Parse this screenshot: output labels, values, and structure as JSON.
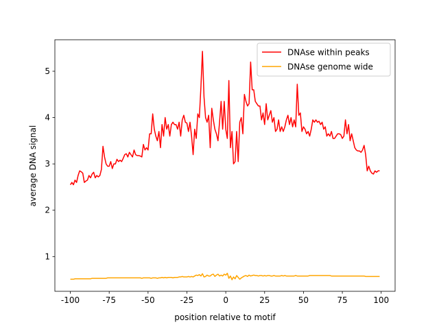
{
  "chart_data": {
    "type": "line",
    "xlabel": "position relative to motif",
    "ylabel": "average DNA signal",
    "x": [
      -100,
      -99,
      -98,
      -97,
      -96,
      -95,
      -94,
      -93,
      -92,
      -91,
      -90,
      -89,
      -88,
      -87,
      -86,
      -85,
      -84,
      -83,
      -82,
      -81,
      -80,
      -79,
      -78,
      -77,
      -76,
      -75,
      -74,
      -73,
      -72,
      -71,
      -70,
      -69,
      -68,
      -67,
      -66,
      -65,
      -64,
      -63,
      -62,
      -61,
      -60,
      -59,
      -58,
      -57,
      -56,
      -55,
      -54,
      -53,
      -52,
      -51,
      -50,
      -49,
      -48,
      -47,
      -46,
      -45,
      -44,
      -43,
      -42,
      -41,
      -40,
      -39,
      -38,
      -37,
      -36,
      -35,
      -34,
      -33,
      -32,
      -31,
      -30,
      -29,
      -28,
      -27,
      -26,
      -25,
      -24,
      -23,
      -22,
      -21,
      -20,
      -19,
      -18,
      -17,
      -16,
      -15,
      -14,
      -13,
      -12,
      -11,
      -10,
      -9,
      -8,
      -7,
      -6,
      -5,
      -4,
      -3,
      -2,
      -1,
      0,
      1,
      2,
      3,
      4,
      5,
      6,
      7,
      8,
      9,
      10,
      11,
      12,
      13,
      14,
      15,
      16,
      17,
      18,
      19,
      20,
      21,
      22,
      23,
      24,
      25,
      26,
      27,
      28,
      29,
      30,
      31,
      32,
      33,
      34,
      35,
      36,
      37,
      38,
      39,
      40,
      41,
      42,
      43,
      44,
      45,
      46,
      47,
      48,
      49,
      50,
      51,
      52,
      53,
      54,
      55,
      56,
      57,
      58,
      59,
      60,
      61,
      62,
      63,
      64,
      65,
      66,
      67,
      68,
      69,
      70,
      71,
      72,
      73,
      74,
      75,
      76,
      77,
      78,
      79,
      80,
      81,
      82,
      83,
      84,
      85,
      86,
      87,
      88,
      89,
      90,
      91,
      92,
      93,
      94,
      95,
      96,
      97,
      98,
      99
    ],
    "series": [
      {
        "name": "DNAse within peaks",
        "color": "#ff0000",
        "values": [
          2.55,
          2.6,
          2.55,
          2.65,
          2.6,
          2.75,
          2.85,
          2.83,
          2.8,
          2.6,
          2.63,
          2.65,
          2.75,
          2.7,
          2.78,
          2.82,
          2.7,
          2.75,
          2.72,
          2.75,
          2.88,
          3.38,
          3.15,
          3.0,
          2.95,
          2.95,
          3.05,
          2.9,
          3.0,
          3.0,
          3.1,
          3.05,
          3.08,
          3.05,
          3.12,
          3.2,
          3.22,
          3.15,
          3.25,
          3.2,
          3.15,
          3.3,
          3.2,
          3.18,
          3.18,
          3.17,
          3.15,
          3.42,
          3.3,
          3.35,
          3.3,
          3.65,
          3.65,
          4.08,
          3.75,
          3.6,
          3.5,
          3.7,
          3.35,
          3.85,
          3.6,
          4.0,
          3.75,
          3.85,
          3.6,
          3.85,
          3.9,
          3.85,
          3.85,
          3.75,
          3.9,
          3.6,
          3.95,
          4.05,
          3.9,
          3.88,
          3.7,
          3.9,
          3.6,
          3.2,
          3.75,
          3.55,
          4.08,
          4.0,
          4.65,
          5.43,
          4.45,
          4.0,
          3.9,
          4.05,
          3.35,
          4.2,
          3.95,
          3.75,
          3.65,
          3.5,
          3.9,
          4.35,
          3.75,
          4.35,
          3.75,
          3.55,
          4.8,
          3.35,
          3.7,
          3.0,
          3.05,
          3.7,
          3.05,
          3.9,
          4.0,
          3.65,
          4.5,
          4.35,
          4.25,
          4.3,
          5.2,
          4.6,
          4.6,
          4.35,
          4.3,
          4.25,
          4.25,
          3.95,
          4.1,
          3.85,
          4.3,
          3.95,
          4.05,
          4.15,
          3.9,
          4.0,
          3.7,
          3.75,
          3.95,
          3.7,
          3.8,
          3.7,
          3.8,
          3.95,
          4.05,
          3.85,
          4.0,
          3.8,
          3.95,
          3.8,
          4.72,
          4.05,
          4.1,
          3.7,
          3.8,
          3.75,
          3.65,
          3.7,
          3.6,
          3.75,
          3.95,
          3.9,
          3.95,
          3.9,
          3.92,
          3.85,
          3.9,
          3.75,
          3.8,
          3.6,
          3.65,
          3.6,
          3.7,
          3.55,
          3.55,
          3.6,
          3.65,
          3.65,
          3.63,
          3.55,
          3.6,
          3.95,
          3.65,
          3.85,
          3.5,
          3.65,
          3.5,
          3.35,
          3.3,
          3.28,
          3.28,
          3.25,
          3.3,
          3.4,
          3.2,
          2.85,
          2.95,
          2.85,
          2.8,
          2.78,
          2.85,
          2.82,
          2.85,
          2.85
        ]
      },
      {
        "name": "DNAse genome wide",
        "color": "#ffa500",
        "values": [
          0.51,
          0.51,
          0.51,
          0.52,
          0.52,
          0.52,
          0.52,
          0.52,
          0.52,
          0.52,
          0.52,
          0.52,
          0.52,
          0.52,
          0.53,
          0.53,
          0.53,
          0.53,
          0.53,
          0.53,
          0.53,
          0.53,
          0.53,
          0.53,
          0.54,
          0.54,
          0.54,
          0.54,
          0.54,
          0.54,
          0.54,
          0.54,
          0.54,
          0.54,
          0.54,
          0.54,
          0.54,
          0.54,
          0.54,
          0.54,
          0.54,
          0.54,
          0.54,
          0.54,
          0.54,
          0.54,
          0.53,
          0.54,
          0.54,
          0.54,
          0.54,
          0.54,
          0.53,
          0.54,
          0.54,
          0.54,
          0.53,
          0.54,
          0.54,
          0.55,
          0.54,
          0.55,
          0.54,
          0.55,
          0.55,
          0.55,
          0.54,
          0.55,
          0.55,
          0.55,
          0.56,
          0.56,
          0.57,
          0.56,
          0.56,
          0.56,
          0.57,
          0.56,
          0.57,
          0.56,
          0.58,
          0.6,
          0.59,
          0.61,
          0.58,
          0.63,
          0.56,
          0.57,
          0.6,
          0.58,
          0.58,
          0.61,
          0.62,
          0.57,
          0.6,
          0.62,
          0.58,
          0.6,
          0.58,
          0.62,
          0.6,
          0.64,
          0.53,
          0.58,
          0.5,
          0.56,
          0.52,
          0.59,
          0.55,
          0.51,
          0.54,
          0.56,
          0.58,
          0.59,
          0.57,
          0.6,
          0.58,
          0.59,
          0.6,
          0.59,
          0.59,
          0.58,
          0.59,
          0.59,
          0.58,
          0.59,
          0.58,
          0.59,
          0.59,
          0.58,
          0.58,
          0.59,
          0.58,
          0.58,
          0.58,
          0.58,
          0.59,
          0.58,
          0.59,
          0.58,
          0.58,
          0.58,
          0.58,
          0.58,
          0.58,
          0.59,
          0.58,
          0.58,
          0.58,
          0.58,
          0.58,
          0.58,
          0.58,
          0.58,
          0.59,
          0.59,
          0.59,
          0.59,
          0.59,
          0.59,
          0.59,
          0.59,
          0.59,
          0.59,
          0.59,
          0.59,
          0.59,
          0.59,
          0.58,
          0.58,
          0.58,
          0.58,
          0.58,
          0.58,
          0.58,
          0.58,
          0.58,
          0.58,
          0.58,
          0.58,
          0.58,
          0.58,
          0.58,
          0.58,
          0.58,
          0.58,
          0.58,
          0.58,
          0.58,
          0.58,
          0.57,
          0.57,
          0.57,
          0.57,
          0.57,
          0.57,
          0.57,
          0.57,
          0.57,
          0.57
        ]
      }
    ],
    "xlim": [
      -109.95,
      108.95
    ],
    "xticks": [
      -100,
      -75,
      -50,
      -25,
      0,
      25,
      50,
      75,
      100
    ],
    "ylim": [
      0.25,
      5.68
    ],
    "yticks": [
      1,
      2,
      3,
      4,
      5
    ],
    "legend": "upper right"
  }
}
